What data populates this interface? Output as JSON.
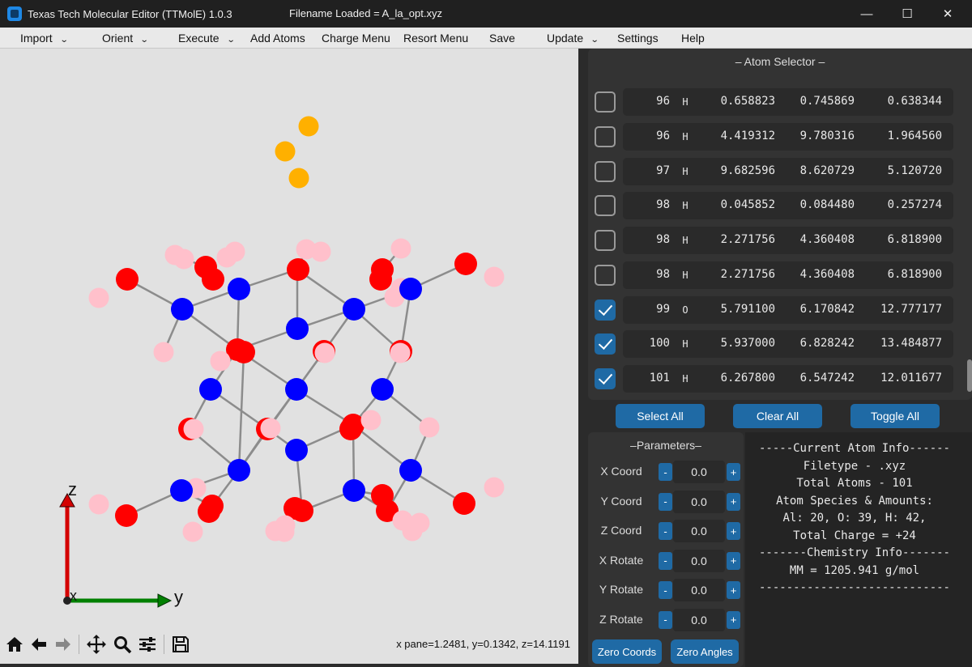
{
  "window": {
    "title": "Texas Tech Molecular Editor (TTMolE) 1.0.3",
    "filename_loaded": "Filename Loaded = A_la_opt.xyz",
    "minimize_glyph": "—",
    "maximize_glyph": "☐",
    "close_glyph": "✕"
  },
  "menu": [
    {
      "label": "Import",
      "dropdown": true
    },
    {
      "label": "Orient",
      "dropdown": true
    },
    {
      "label": "Execute",
      "dropdown": true
    },
    {
      "label": "Add Atoms",
      "dropdown": false
    },
    {
      "label": "Charge Menu",
      "dropdown": false
    },
    {
      "label": "Resort Menu",
      "dropdown": false
    },
    {
      "label": "Save",
      "dropdown": false
    },
    {
      "label": "Update",
      "dropdown": true
    },
    {
      "label": "Settings",
      "dropdown": false
    },
    {
      "label": "Help",
      "dropdown": false
    }
  ],
  "menu_chevron": "⌄",
  "viewer": {
    "background": "#e1e1e1",
    "axis_labels": {
      "z": "z",
      "y": "y",
      "x": "x"
    },
    "colors": {
      "Al": "#0000ff",
      "O": "#ff0000",
      "H": "#ffc0cb",
      "Au": "#ffb000",
      "bond": "#8c8c8c",
      "z_axis": "#d40000",
      "y_axis": "#008000"
    }
  },
  "toolbar": {
    "icons": [
      "home-icon",
      "back-icon",
      "forward-icon",
      "pan-icon",
      "zoom-icon",
      "configure-icon",
      "save-icon"
    ],
    "coord_readout": "x pane=1.2481, y=0.1342, z=14.1191"
  },
  "atom_selector": {
    "title": "– Atom Selector –",
    "rows": [
      {
        "checked": false,
        "index": "96",
        "element": "H",
        "x": "0.658823",
        "y": "0.745869",
        "z": "0.638344"
      },
      {
        "checked": false,
        "index": "96",
        "element": "H",
        "x": "4.419312",
        "y": "9.780316",
        "z": "1.964560"
      },
      {
        "checked": false,
        "index": "97",
        "element": "H",
        "x": "9.682596",
        "y": "8.620729",
        "z": "5.120720"
      },
      {
        "checked": false,
        "index": "98",
        "element": "H",
        "x": "0.045852",
        "y": "0.084480",
        "z": "0.257274"
      },
      {
        "checked": false,
        "index": "98",
        "element": "H",
        "x": "2.271756",
        "y": "4.360408",
        "z": "6.818900"
      },
      {
        "checked": false,
        "index": "98",
        "element": "H",
        "x": "2.271756",
        "y": "4.360408",
        "z": "6.818900"
      },
      {
        "checked": true,
        "index": "99",
        "element": "O",
        "x": "5.791100",
        "y": "6.170842",
        "z": "12.777177"
      },
      {
        "checked": true,
        "index": "100",
        "element": "H",
        "x": "5.937000",
        "y": "6.828242",
        "z": "13.484877"
      },
      {
        "checked": true,
        "index": "101",
        "element": "H",
        "x": "6.267800",
        "y": "6.547242",
        "z": "12.011677"
      }
    ],
    "buttons": {
      "select_all": "Select All",
      "clear_all": "Clear All",
      "toggle_all": "Toggle All"
    }
  },
  "parameters": {
    "title": "–Parameters–",
    "rows": [
      {
        "label": "X Coord",
        "value": "0.0"
      },
      {
        "label": "Y Coord",
        "value": "0.0"
      },
      {
        "label": "Z Coord",
        "value": "0.0"
      },
      {
        "label": "X Rotate",
        "value": "0.0"
      },
      {
        "label": "Y Rotate",
        "value": "0.0"
      },
      {
        "label": "Z Rotate",
        "value": "0.0"
      }
    ],
    "minus": "-",
    "plus": "+",
    "zero_coords": "Zero Coords",
    "zero_angles": "Zero Angles"
  },
  "info": {
    "lines": [
      "-----Current Atom Info------",
      "Filetype - .xyz",
      "Total Atoms - 101",
      "Atom Species & Amounts:",
      "Al: 20, O: 39, H: 42,",
      "Total Charge = +24",
      "-------Chemistry Info-------",
      "MM = 1205.941 g/mol",
      "----------------------------"
    ]
  }
}
